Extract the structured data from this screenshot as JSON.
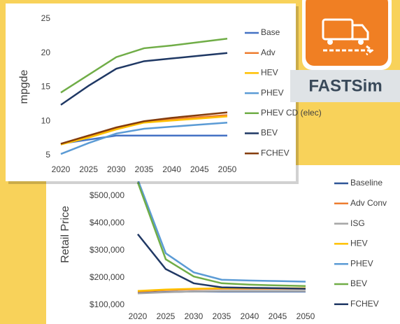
{
  "chart_data": [
    {
      "type": "line",
      "ylabel": "mpgde",
      "x": [
        2020,
        2025,
        2030,
        2035,
        2040,
        2045,
        2050
      ],
      "xlim": [
        2020,
        2050
      ],
      "xticks": [
        2020,
        2025,
        2030,
        2035,
        2040,
        2045,
        2050
      ],
      "ylim": [
        5,
        25
      ],
      "yticks": [
        5,
        10,
        15,
        20,
        25
      ],
      "grid": false,
      "legend": "right",
      "series": [
        {
          "name": "Base",
          "color": "#4472c4",
          "values": [
            6.7,
            7.3,
            7.9,
            7.9,
            7.9,
            7.9,
            7.9
          ]
        },
        {
          "name": "Adv",
          "color": "#ed7d31",
          "values": [
            6.6,
            7.8,
            9.0,
            9.9,
            10.3,
            10.6,
            10.9
          ]
        },
        {
          "name": "HEV",
          "color": "#ffc000",
          "values": [
            6.6,
            7.6,
            8.8,
            9.8,
            10.1,
            10.4,
            10.7
          ]
        },
        {
          "name": "PHEV",
          "color": "#5b9bd5",
          "values": [
            5.2,
            6.8,
            8.2,
            8.9,
            9.2,
            9.5,
            9.8
          ]
        },
        {
          "name": "PHEV CD (elec)",
          "color": "#70ad47",
          "values": [
            14.2,
            16.8,
            19.4,
            20.7,
            21.1,
            21.6,
            22.1
          ]
        },
        {
          "name": "BEV",
          "color": "#1f3864",
          "values": [
            12.4,
            15.2,
            17.7,
            18.8,
            19.2,
            19.6,
            20.0
          ]
        },
        {
          "name": "FCHEV",
          "color": "#843c0c",
          "values": [
            6.7,
            7.9,
            9.1,
            10.0,
            10.5,
            10.9,
            11.3
          ]
        }
      ]
    },
    {
      "type": "line",
      "ylabel": "Retail Price",
      "x": [
        2020,
        2025,
        2030,
        2035,
        2040,
        2045,
        2050
      ],
      "xlim": [
        2020,
        2050
      ],
      "xticks": [
        2020,
        2025,
        2030,
        2035,
        2040,
        2045,
        2050
      ],
      "ylim": [
        100000,
        600000
      ],
      "yticks": [
        {
          "value": 100000,
          "label": "$100,000"
        },
        {
          "value": 200000,
          "label": "$200,000"
        },
        {
          "value": 300000,
          "label": "$300,000"
        },
        {
          "value": 400000,
          "label": "$400,000"
        },
        {
          "value": 500000,
          "label": "$500,000"
        }
      ],
      "grid": false,
      "legend": "right",
      "series": [
        {
          "name": "Baseline",
          "color": "#2f5597",
          "values": [
            145000,
            148000,
            150000,
            150000,
            150000,
            150000,
            150000
          ]
        },
        {
          "name": "Adv Conv",
          "color": "#ed7d31",
          "values": [
            150000,
            155000,
            158000,
            160000,
            160000,
            160000,
            160000
          ]
        },
        {
          "name": "ISG",
          "color": "#a5a5a5",
          "values": [
            143000,
            147000,
            150000,
            152000,
            152000,
            152000,
            152000
          ]
        },
        {
          "name": "HEV",
          "color": "#ffc000",
          "values": [
            152000,
            157000,
            160000,
            162000,
            162000,
            162000,
            162000
          ]
        },
        {
          "name": "PHEV",
          "color": "#5b9bd5",
          "values": [
            560000,
            290000,
            220000,
            193000,
            190000,
            188000,
            186000
          ]
        },
        {
          "name": "BEV",
          "color": "#70ad47",
          "values": [
            550000,
            268000,
            205000,
            180000,
            175000,
            172000,
            170000
          ]
        },
        {
          "name": "FCHEV",
          "color": "#203864",
          "values": [
            360000,
            232000,
            180000,
            165000,
            163000,
            162000,
            160000
          ]
        }
      ]
    }
  ],
  "logo": {
    "text": "FASTSim"
  }
}
